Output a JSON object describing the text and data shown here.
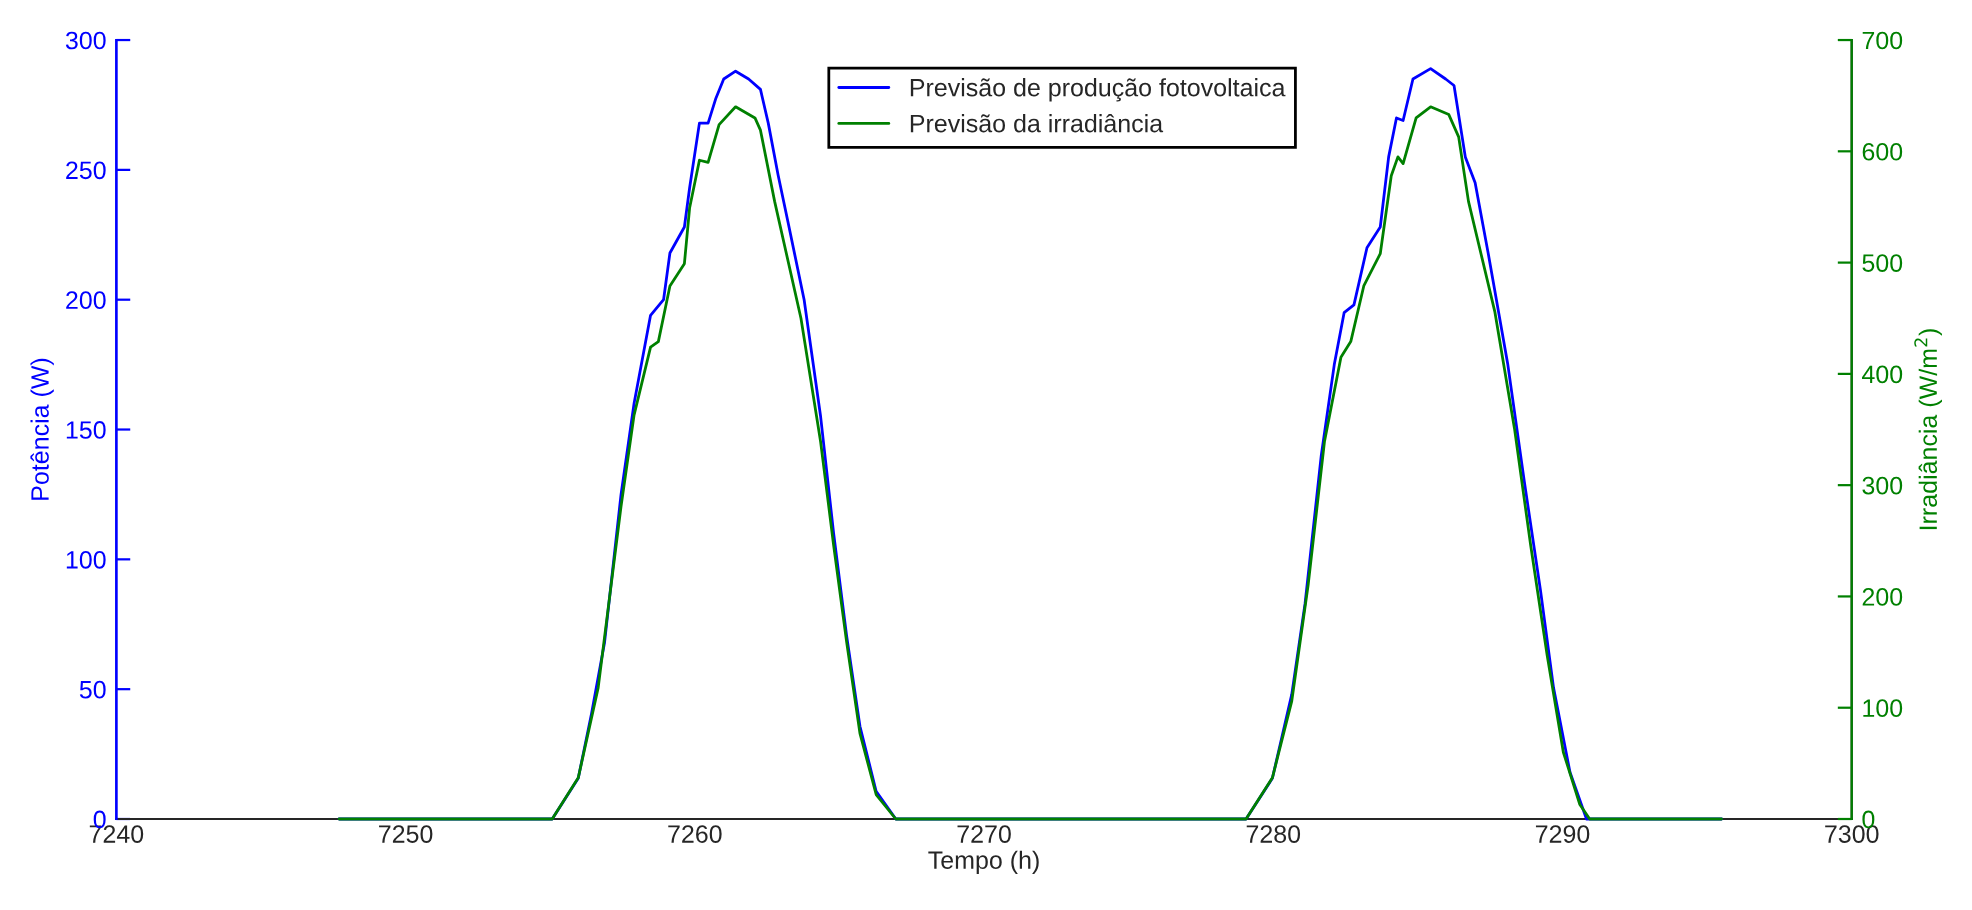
{
  "chart_data": {
    "type": "line",
    "xlabel": "Tempo (h)",
    "ylabel": "Potência (W)",
    "y2label": "Irradiância (W/m$^{2}$)",
    "xlim": [
      7240,
      7300
    ],
    "xticks": [
      7240,
      7250,
      7260,
      7270,
      7280,
      7290,
      7300
    ],
    "ylim": [
      0,
      300
    ],
    "yticks": [
      0,
      50,
      100,
      150,
      200,
      250,
      300
    ],
    "y2lim": [
      0,
      700
    ],
    "y2ticks": [
      0,
      100,
      200,
      300,
      400,
      500,
      600,
      700
    ],
    "grid": false,
    "legend": "top",
    "marker": "none",
    "line_style": "solid",
    "series": [
      {
        "name": "Previsão de produção fotovoltaica",
        "color": "#0000ff",
        "x": [
          7247.7,
          7255.07,
          7255.97,
          7256.43,
          7256.88,
          7257.45,
          7257.9,
          7258.47,
          7258.92,
          7259.14,
          7259.64,
          7259.82,
          7260.16,
          7260.46,
          7260.73,
          7261.0,
          7261.41,
          7261.86,
          7262.27,
          7262.54,
          7262.88,
          7263.22,
          7263.78,
          7264.35,
          7264.8,
          7265.25,
          7265.71,
          7266.27,
          7266.95,
          7279.06,
          7279.97,
          7280.64,
          7281.1,
          7281.66,
          7282.11,
          7282.45,
          7282.79,
          7283.24,
          7283.7,
          7283.99,
          7284.26,
          7284.49,
          7284.83,
          7285.44,
          7285.96,
          7286.25,
          7286.64,
          7286.98,
          7287.43,
          7288.11,
          7288.68,
          7289.24,
          7289.69,
          7290.26,
          7290.83,
          7295.5
        ],
        "values": [
          0,
          0,
          15.7,
          40.6,
          68,
          125,
          160,
          194,
          200,
          218,
          228,
          243,
          268,
          268,
          277.6,
          285,
          288,
          285,
          281,
          268,
          248,
          230,
          200,
          155,
          110,
          70.5,
          35.7,
          10.7,
          0,
          0,
          15.7,
          48,
          83,
          140,
          175,
          195,
          198,
          220,
          228,
          255,
          270,
          269,
          285,
          289,
          285,
          282.5,
          255,
          245,
          218,
          175,
          130,
          88,
          50.6,
          18,
          0,
          0
        ]
      },
      {
        "name": "Previsão da irradiância",
        "color": "#008000",
        "axis": "y2",
        "x": [
          7247.7,
          7255.07,
          7255.97,
          7256.66,
          7257.45,
          7257.9,
          7258.47,
          7258.74,
          7259.14,
          7259.64,
          7259.82,
          7260.16,
          7260.46,
          7260.84,
          7261.41,
          7262.08,
          7262.27,
          7262.76,
          7263.67,
          7264.35,
          7264.8,
          7265.25,
          7265.71,
          7266.27,
          7266.95,
          7279.06,
          7279.97,
          7280.64,
          7281.21,
          7281.77,
          7282.34,
          7282.68,
          7283.13,
          7283.7,
          7284.08,
          7284.31,
          7284.49,
          7284.94,
          7285.44,
          7286.07,
          7286.41,
          7286.75,
          7287.66,
          7288.34,
          7288.9,
          7289.47,
          7290.03,
          7290.6,
          7290.94,
          7295.5
        ],
        "values": [
          0,
          0,
          37,
          118,
          281,
          363,
          424,
          429,
          479,
          499,
          549,
          592,
          590,
          624,
          640,
          630,
          619,
          555,
          450,
          339,
          246,
          159,
          77,
          22,
          0,
          0,
          37,
          106,
          211,
          339,
          415,
          429,
          479,
          508,
          578,
          595,
          589,
          630,
          640,
          633,
          613,
          555,
          456,
          351,
          246,
          147,
          60,
          13,
          0,
          0
        ]
      }
    ]
  }
}
